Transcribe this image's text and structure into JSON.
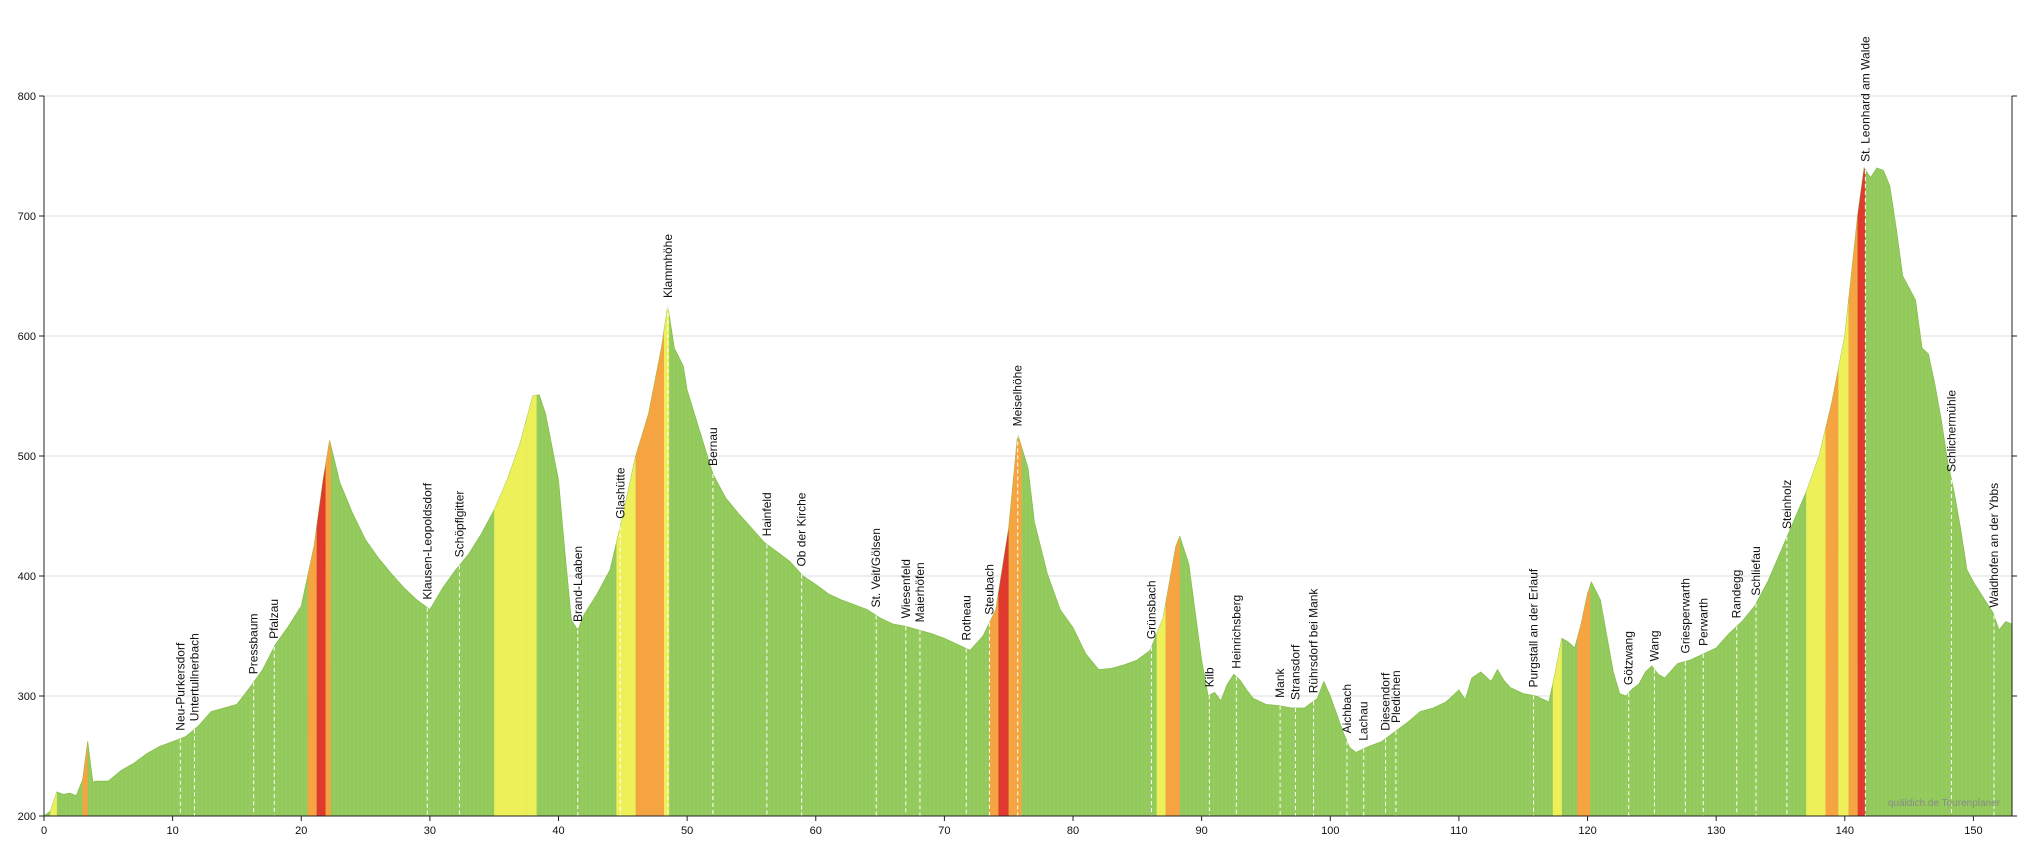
{
  "chart_data": {
    "type": "area",
    "title": "",
    "xlabel": "",
    "ylabel": "",
    "xlim": [
      0,
      153
    ],
    "ylim": [
      200,
      800
    ],
    "x_ticks": [
      0,
      10,
      20,
      30,
      40,
      50,
      60,
      70,
      80,
      90,
      100,
      110,
      120,
      130,
      140,
      150
    ],
    "y_ticks": [
      200,
      300,
      400,
      500,
      600,
      700,
      800
    ],
    "grid": true,
    "gradient_colors": {
      "flat": "#92c95b",
      "moderate": "#eef05a",
      "steep": "#f6a441",
      "very_steep": "#e0392d"
    },
    "profile": [
      [
        0,
        200
      ],
      [
        0.5,
        204
      ],
      [
        1,
        220
      ],
      [
        1.5,
        218
      ],
      [
        2,
        219
      ],
      [
        2.5,
        217
      ],
      [
        3,
        230
      ],
      [
        3.4,
        262
      ],
      [
        3.6,
        245
      ],
      [
        3.8,
        228
      ],
      [
        4,
        229
      ],
      [
        5,
        229
      ],
      [
        6,
        238
      ],
      [
        7,
        244
      ],
      [
        8,
        252
      ],
      [
        9,
        258
      ],
      [
        10,
        262
      ],
      [
        11,
        266
      ],
      [
        12,
        275
      ],
      [
        13,
        287
      ],
      [
        14,
        290
      ],
      [
        15,
        293
      ],
      [
        16,
        307
      ],
      [
        17,
        322
      ],
      [
        18,
        343
      ],
      [
        19,
        358
      ],
      [
        20,
        375
      ],
      [
        21,
        425
      ],
      [
        21.7,
        480
      ],
      [
        22.2,
        513
      ],
      [
        23,
        478
      ],
      [
        24,
        452
      ],
      [
        25,
        430
      ],
      [
        26,
        415
      ],
      [
        27,
        402
      ],
      [
        28,
        390
      ],
      [
        29,
        380
      ],
      [
        30,
        372
      ],
      [
        31,
        390
      ],
      [
        32,
        405
      ],
      [
        33,
        418
      ],
      [
        34,
        435
      ],
      [
        35,
        455
      ],
      [
        36,
        480
      ],
      [
        37,
        510
      ],
      [
        38,
        550
      ],
      [
        38.5,
        551
      ],
      [
        39,
        535
      ],
      [
        40,
        480
      ],
      [
        40.5,
        420
      ],
      [
        41,
        363
      ],
      [
        41.5,
        355
      ],
      [
        42,
        368
      ],
      [
        43,
        385
      ],
      [
        44,
        405
      ],
      [
        45,
        450
      ],
      [
        46,
        500
      ],
      [
        47,
        535
      ],
      [
        48,
        590
      ],
      [
        48.5,
        625
      ],
      [
        49,
        590
      ],
      [
        49.7,
        575
      ],
      [
        50,
        555
      ],
      [
        51,
        520
      ],
      [
        52,
        485
      ],
      [
        53,
        465
      ],
      [
        54,
        452
      ],
      [
        55,
        440
      ],
      [
        56,
        428
      ],
      [
        57,
        420
      ],
      [
        58,
        412
      ],
      [
        59,
        400
      ],
      [
        60,
        393
      ],
      [
        61,
        385
      ],
      [
        62,
        380
      ],
      [
        63,
        376
      ],
      [
        64,
        372
      ],
      [
        65,
        365
      ],
      [
        66,
        360
      ],
      [
        67,
        358
      ],
      [
        68,
        355
      ],
      [
        69,
        352
      ],
      [
        70,
        348
      ],
      [
        71,
        343
      ],
      [
        72,
        338
      ],
      [
        73,
        350
      ],
      [
        74,
        372
      ],
      [
        75,
        440
      ],
      [
        75.7,
        518
      ],
      [
        76.5,
        490
      ],
      [
        77,
        445
      ],
      [
        78,
        402
      ],
      [
        79,
        372
      ],
      [
        80,
        357
      ],
      [
        81,
        335
      ],
      [
        82,
        322
      ],
      [
        83,
        323
      ],
      [
        84,
        326
      ],
      [
        85,
        330
      ],
      [
        86,
        338
      ],
      [
        87,
        365
      ],
      [
        87.5,
        395
      ],
      [
        88,
        425
      ],
      [
        88.3,
        433
      ],
      [
        89,
        410
      ],
      [
        90,
        330
      ],
      [
        90.5,
        300
      ],
      [
        91,
        303
      ],
      [
        91.5,
        296
      ],
      [
        92,
        310
      ],
      [
        92.5,
        318
      ],
      [
        93,
        313
      ],
      [
        93.5,
        305
      ],
      [
        94,
        298
      ],
      [
        95,
        293
      ],
      [
        96,
        292
      ],
      [
        97,
        290
      ],
      [
        98,
        290
      ],
      [
        99,
        298
      ],
      [
        99.5,
        312
      ],
      [
        100,
        300
      ],
      [
        100.5,
        285
      ],
      [
        101,
        270
      ],
      [
        101.5,
        257
      ],
      [
        102,
        253
      ],
      [
        103,
        258
      ],
      [
        104,
        262
      ],
      [
        105,
        270
      ],
      [
        106,
        278
      ],
      [
        107,
        287
      ],
      [
        108,
        290
      ],
      [
        109,
        295
      ],
      [
        110,
        305
      ],
      [
        110.5,
        297
      ],
      [
        111,
        315
      ],
      [
        111.7,
        320
      ],
      [
        112.5,
        312
      ],
      [
        113,
        322
      ],
      [
        113.5,
        313
      ],
      [
        114,
        307
      ],
      [
        115,
        302
      ],
      [
        116,
        300
      ],
      [
        117,
        295
      ],
      [
        117.5,
        320
      ],
      [
        118,
        348
      ],
      [
        118.5,
        345
      ],
      [
        119,
        340
      ],
      [
        119.5,
        360
      ],
      [
        120,
        385
      ],
      [
        120.3,
        395
      ],
      [
        121,
        380
      ],
      [
        122,
        320
      ],
      [
        122.5,
        302
      ],
      [
        123,
        300
      ],
      [
        123.5,
        306
      ],
      [
        124,
        310
      ],
      [
        124.5,
        320
      ],
      [
        125,
        325
      ],
      [
        125.5,
        318
      ],
      [
        126,
        315
      ],
      [
        127,
        327
      ],
      [
        128,
        330
      ],
      [
        129,
        335
      ],
      [
        130,
        340
      ],
      [
        131,
        352
      ],
      [
        132,
        362
      ],
      [
        133,
        375
      ],
      [
        134,
        395
      ],
      [
        135,
        420
      ],
      [
        136,
        445
      ],
      [
        137,
        470
      ],
      [
        138,
        500
      ],
      [
        139,
        545
      ],
      [
        140,
        600
      ],
      [
        140.5,
        650
      ],
      [
        141,
        700
      ],
      [
        141.5,
        740
      ],
      [
        142,
        732
      ],
      [
        142.5,
        740
      ],
      [
        143,
        738
      ],
      [
        143.5,
        725
      ],
      [
        144,
        690
      ],
      [
        144.5,
        650
      ],
      [
        145,
        640
      ],
      [
        145.5,
        630
      ],
      [
        146,
        590
      ],
      [
        146.5,
        585
      ],
      [
        147,
        560
      ],
      [
        147.5,
        530
      ],
      [
        148,
        495
      ],
      [
        148.5,
        470
      ],
      [
        149,
        440
      ],
      [
        149.5,
        405
      ],
      [
        150,
        395
      ],
      [
        151,
        378
      ],
      [
        151.5,
        370
      ],
      [
        152,
        355
      ],
      [
        152.5,
        362
      ],
      [
        153,
        360
      ]
    ],
    "gradient_zones": [
      [
        0.5,
        1,
        "moderate"
      ],
      [
        3,
        3.4,
        "steep"
      ],
      [
        20.5,
        21.2,
        "steep"
      ],
      [
        21.2,
        21.9,
        "very_steep"
      ],
      [
        21.9,
        22.3,
        "steep"
      ],
      [
        35,
        36.5,
        "moderate"
      ],
      [
        36.5,
        37.5,
        "moderate"
      ],
      [
        37.5,
        38.3,
        "moderate"
      ],
      [
        44.5,
        46,
        "moderate"
      ],
      [
        46,
        46.8,
        "steep"
      ],
      [
        46.8,
        48.2,
        "steep"
      ],
      [
        48.2,
        48.6,
        "moderate"
      ],
      [
        73.5,
        74.2,
        "steep"
      ],
      [
        74.2,
        75,
        "very_steep"
      ],
      [
        75,
        76,
        "steep"
      ],
      [
        86.5,
        87.2,
        "moderate"
      ],
      [
        87.2,
        88.3,
        "steep"
      ],
      [
        117.3,
        118,
        "moderate"
      ],
      [
        119.2,
        120.2,
        "steep"
      ],
      [
        137,
        138.5,
        "moderate"
      ],
      [
        138.5,
        139.5,
        "steep"
      ],
      [
        139.5,
        140.3,
        "moderate"
      ],
      [
        140.3,
        141,
        "steep"
      ],
      [
        141,
        141.6,
        "very_steep"
      ]
    ],
    "places": [
      {
        "name": "Neu-Purkersdorf",
        "km": 10.6
      },
      {
        "name": "Untertullnerbach",
        "km": 11.7
      },
      {
        "name": "Pressbaum",
        "km": 16.3
      },
      {
        "name": "Pfalzau",
        "km": 17.9
      },
      {
        "name": "Klausen-Leopoldsdorf",
        "km": 29.8
      },
      {
        "name": "Schöpflgitter",
        "km": 32.3
      },
      {
        "name": "Brand-Laaben",
        "km": 41.5
      },
      {
        "name": "Glashütte",
        "km": 44.8
      },
      {
        "name": "Klammhöhe",
        "km": 48.5
      },
      {
        "name": "Bernau",
        "km": 52
      },
      {
        "name": "Hainfeld",
        "km": 56.2
      },
      {
        "name": "Ob der Kirche",
        "km": 58.9
      },
      {
        "name": "St. Veit/Gölsen",
        "km": 64.7
      },
      {
        "name": "Wiesenfeld",
        "km": 67
      },
      {
        "name": "Maierhöfen",
        "km": 68.1
      },
      {
        "name": "Rotheau",
        "km": 71.7
      },
      {
        "name": "Steubach",
        "km": 73.5
      },
      {
        "name": "Meiselhöhe",
        "km": 75.7
      },
      {
        "name": "Grünsbach",
        "km": 86.1
      },
      {
        "name": "Kilb",
        "km": 90.6
      },
      {
        "name": "Heinrichsberg",
        "km": 92.7
      },
      {
        "name": "Mank",
        "km": 96.1
      },
      {
        "name": "Stransdorf",
        "km": 97.3
      },
      {
        "name": "Rührsdorf bei Mank",
        "km": 98.7
      },
      {
        "name": "Aichbach",
        "km": 101.3
      },
      {
        "name": "Lachau",
        "km": 102.6
      },
      {
        "name": "Diesendorf",
        "km": 104.3
      },
      {
        "name": "Pledichen",
        "km": 105.1
      },
      {
        "name": "Purgstall an der Erlauf",
        "km": 115.8
      },
      {
        "name": "Götzwang",
        "km": 123.2
      },
      {
        "name": "Wang",
        "km": 125.2
      },
      {
        "name": "Griesperwarth",
        "km": 127.6
      },
      {
        "name": "Perwarth",
        "km": 129
      },
      {
        "name": "Randegg",
        "km": 131.6
      },
      {
        "name": "Schliefau",
        "km": 133.1
      },
      {
        "name": "Steinholz",
        "km": 135.5
      },
      {
        "name": "St. Leonhard am Walde",
        "km": 141.6
      },
      {
        "name": "Schlichermühle",
        "km": 148.3
      },
      {
        "name": "Waidhofen an der Ybbs",
        "km": 151.6
      }
    ]
  },
  "credit": "quäldich.de Tourenplaner"
}
